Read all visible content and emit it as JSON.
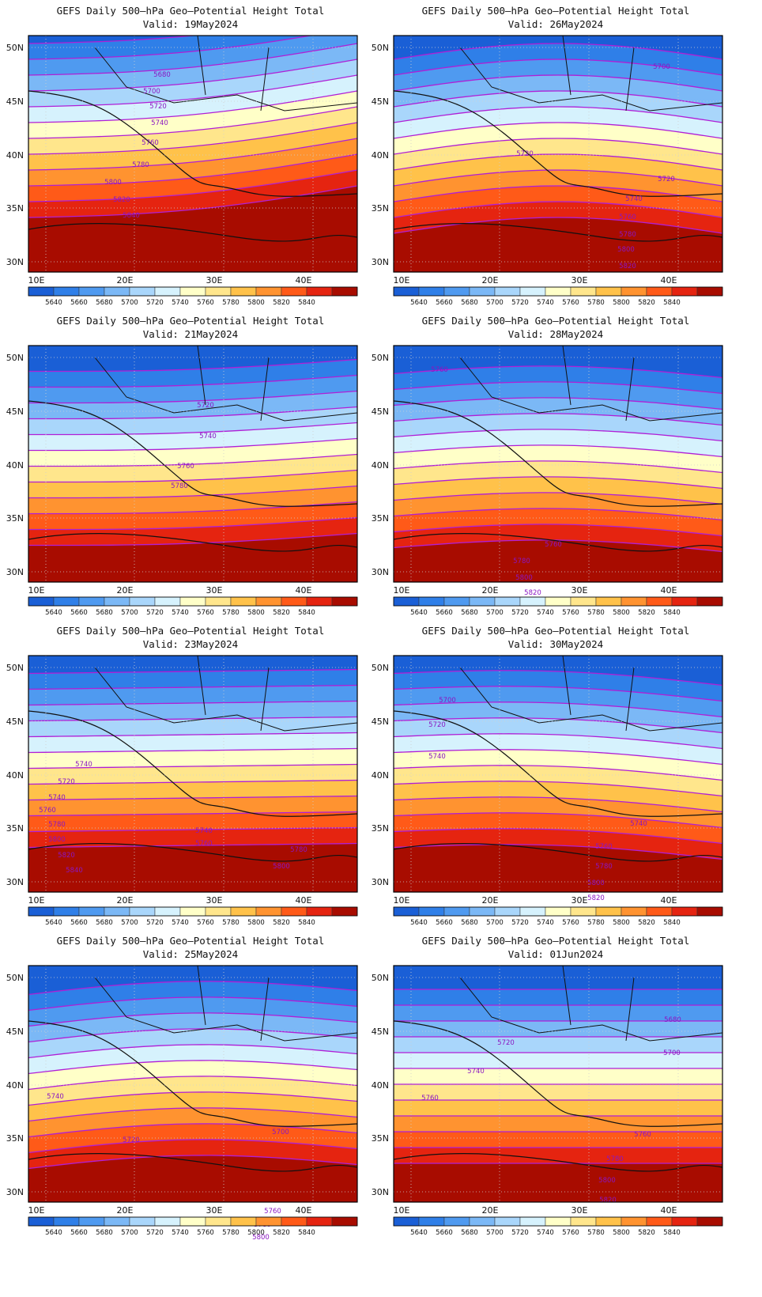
{
  "panels": [
    {
      "title": "GEFS Daily 500–hPa Geo–Potential Height Total",
      "valid": "Valid:  19May2024",
      "bias": -30,
      "tilt": -40,
      "wave": 10,
      "labels": [
        [
          "5680",
          205,
          97
        ],
        [
          "5700",
          192,
          118
        ],
        [
          "5720",
          200,
          137
        ],
        [
          "5740",
          202,
          158
        ],
        [
          "5760",
          190,
          183
        ],
        [
          "5780",
          178,
          211
        ],
        [
          "5800",
          143,
          233
        ],
        [
          "5820",
          154,
          255
        ],
        [
          "5840",
          166,
          275
        ]
      ]
    },
    {
      "title": "GEFS Daily 500–hPa Geo–Potential Height Total",
      "valid": "Valid:  26May2024",
      "bias": 10,
      "tilt": 0,
      "wave": -20,
      "labels": [
        [
          "5700",
          837,
          87
        ],
        [
          "5720",
          664,
          197
        ],
        [
          "5720",
          843,
          229
        ],
        [
          "5740",
          802,
          254
        ],
        [
          "5760",
          794,
          277
        ],
        [
          "5780",
          794,
          299
        ],
        [
          "5800",
          792,
          318
        ],
        [
          "5820",
          794,
          339
        ]
      ]
    },
    {
      "title": "GEFS Daily 500–hPa Geo–Potential Height Total",
      "valid": "Valid:  21May2024",
      "bias": 5,
      "tilt": -15,
      "wave": 5,
      "labels": [
        [
          "5720",
          260,
          515
        ],
        [
          "5740",
          263,
          554
        ],
        [
          "5760",
          235,
          592
        ],
        [
          "5780",
          227,
          617
        ]
      ]
    },
    {
      "title": "GEFS Daily 500–hPa Geo–Potential Height Total",
      "valid": "Valid:  28May2024",
      "bias": 18,
      "tilt": 5,
      "wave": -12,
      "labels": [
        [
          "5760",
          556,
          470
        ],
        [
          "5760",
          700,
          691
        ],
        [
          "5780",
          660,
          712
        ],
        [
          "5800",
          663,
          733
        ],
        [
          "5820",
          674,
          752
        ]
      ]
    },
    {
      "title": "GEFS Daily 500–hPa Geo–Potential Height Total",
      "valid": "Valid:  23May2024",
      "bias": 0,
      "tilt": -5,
      "wave": 0,
      "labels": [
        [
          "5740",
          106,
          969
        ],
        [
          "5720",
          84,
          991
        ],
        [
          "5740",
          72,
          1011
        ],
        [
          "5760",
          60,
          1027
        ],
        [
          "5780",
          72,
          1045
        ],
        [
          "5800",
          72,
          1064
        ],
        [
          "5820",
          84,
          1084
        ],
        [
          "5840",
          94,
          1103
        ],
        [
          "5740",
          258,
          1053
        ],
        [
          "5760",
          258,
          1069
        ],
        [
          "5780",
          378,
          1077
        ],
        [
          "5800",
          356,
          1098
        ]
      ]
    },
    {
      "title": "GEFS Daily 500–hPa Geo–Potential Height Total",
      "valid": "Valid:  30May2024",
      "bias": 10,
      "tilt": 15,
      "wave": -10,
      "labels": [
        [
          "5700",
          566,
          888
        ],
        [
          "5720",
          553,
          919
        ],
        [
          "5740",
          553,
          959
        ],
        [
          "5740",
          808,
          1044
        ],
        [
          "5760",
          764,
          1073
        ],
        [
          "5780",
          764,
          1098
        ],
        [
          "5800",
          754,
          1119
        ],
        [
          "5820",
          754,
          1138
        ],
        [
          "5840",
          741,
          1158
        ]
      ]
    },
    {
      "title": "GEFS Daily 500–hPa Geo–Potential Height Total",
      "valid": "Valid:  25May2024",
      "bias": 14,
      "tilt": -5,
      "wave": -14,
      "labels": [
        [
          "5740",
          70,
          1389
        ],
        [
          "5720",
          166,
          1444
        ],
        [
          "5700",
          355,
          1434
        ],
        [
          "5760",
          345,
          1534
        ],
        [
          "5780",
          332,
          1551
        ],
        [
          "5800",
          330,
          1567
        ]
      ]
    },
    {
      "title": "GEFS Daily 500–hPa Geo–Potential Height Total",
      "valid": "Valid:  01Jun2024",
      "bias": 10,
      "tilt": 0,
      "wave": 0,
      "labels": [
        [
          "5680",
          851,
          1292
        ],
        [
          "5700",
          850,
          1334
        ],
        [
          "5720",
          640,
          1321
        ],
        [
          "5740",
          602,
          1357
        ],
        [
          "5760",
          544,
          1391
        ],
        [
          "5760",
          813,
          1437
        ],
        [
          "5780",
          778,
          1468
        ],
        [
          "5800",
          768,
          1495
        ],
        [
          "5820",
          769,
          1520
        ],
        [
          "5840",
          754,
          1545
        ]
      ]
    }
  ],
  "lat_ticks": [
    "50N",
    "45N",
    "40N",
    "35N",
    "30N"
  ],
  "lon_ticks": [
    "10E",
    "20E",
    "30E",
    "40E"
  ],
  "legend": {
    "labels": [
      "5640",
      "5660",
      "5680",
      "5700",
      "5720",
      "5740",
      "5760",
      "5780",
      "5800",
      "5820",
      "5840"
    ],
    "colors": [
      "#1a5fd6",
      "#2f7fe8",
      "#4f9af0",
      "#7bb8f6",
      "#a9d6fb",
      "#d6f2fd",
      "#ffffc8",
      "#ffe68c",
      "#ffc24a",
      "#ff9330",
      "#ff5a18",
      "#e52410",
      "#a80c00"
    ]
  },
  "contour_color": "#b01fd6"
}
